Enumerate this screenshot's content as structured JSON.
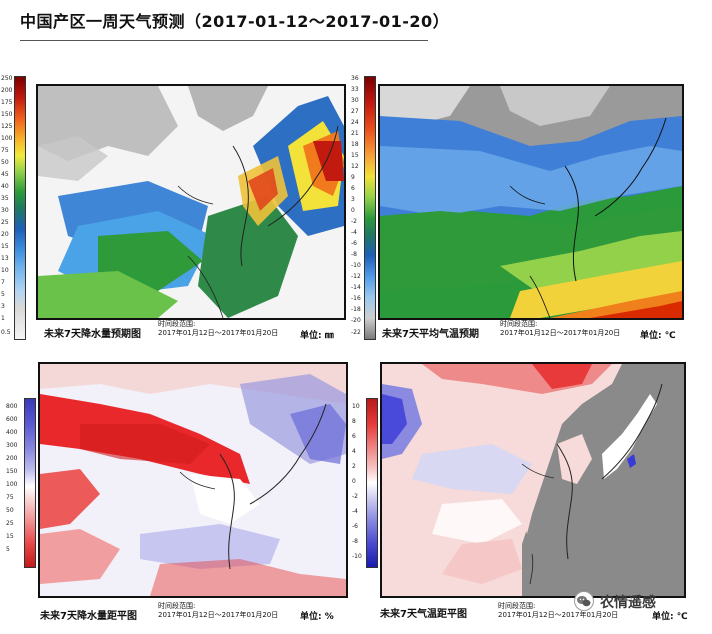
{
  "page_title": "中国产区一周天气预测（2017-01-12～2017-01-20）",
  "panels": [
    {
      "caption": "未来7天降水量预期图",
      "time_label": "时间段范围:",
      "time_range": "2017年01月12日～2017年01月20日",
      "unit": "单位: ㎜",
      "colorbar_ticks": [
        "250",
        "200",
        "175",
        "150",
        "125",
        "100",
        "75",
        "50",
        "45",
        "40",
        "35",
        "30",
        "25",
        "20",
        "15",
        "13",
        "10",
        "7",
        "5",
        "3",
        "1",
        "0.5"
      ],
      "colors": {
        "top": "#7a0000",
        "mid": "#1e8a2e",
        "low": "#5aa8e6",
        "base": "#ffffff"
      }
    },
    {
      "caption": "未来7天平均气温预期",
      "time_label": "时间段范围:",
      "time_range": "2017年01月12日～2017年01月20日",
      "unit": "单位: ℃",
      "colorbar_ticks": [
        "36",
        "33",
        "30",
        "27",
        "24",
        "21",
        "18",
        "15",
        "12",
        "9",
        "6",
        "3",
        "0",
        "-2",
        "-4",
        "-6",
        "-8",
        "-10",
        "-12",
        "-14",
        "-16",
        "-18",
        "-20",
        "-22"
      ],
      "colors": {
        "hot": "#d92a00",
        "warm": "#f2a33a",
        "mild": "#3aa83a",
        "cold": "#3f7fd8",
        "frigid": "#8a8a8a"
      }
    },
    {
      "caption": "未来7天降水量距平图",
      "time_label": "时间段范围:",
      "time_range": "2017年01月12日～2017年01月20日",
      "unit": "单位: %",
      "colorbar_ticks": [
        "800",
        "600",
        "400",
        "300",
        "200",
        "150",
        "100",
        "75",
        "50",
        "25",
        "15",
        "5"
      ],
      "colors": {
        "dry": "#e8282a",
        "wet": "#5a5ad0",
        "neutral": "#ffffff"
      }
    },
    {
      "caption": "未来7天气温距平图",
      "time_label": "时间段范围:",
      "time_range": "2017年01月12日～2017年01月20日",
      "unit": "单位: ℃",
      "colorbar_ticks": [
        "10",
        "8",
        "6",
        "4",
        "2",
        "0",
        "-2",
        "-4",
        "-6",
        "-8",
        "-10"
      ],
      "colors": {
        "warm": "#e83a3a",
        "cool": "#3a3ad8",
        "sea": "#8a8a8a"
      }
    }
  ],
  "watermark": "农情遥感"
}
